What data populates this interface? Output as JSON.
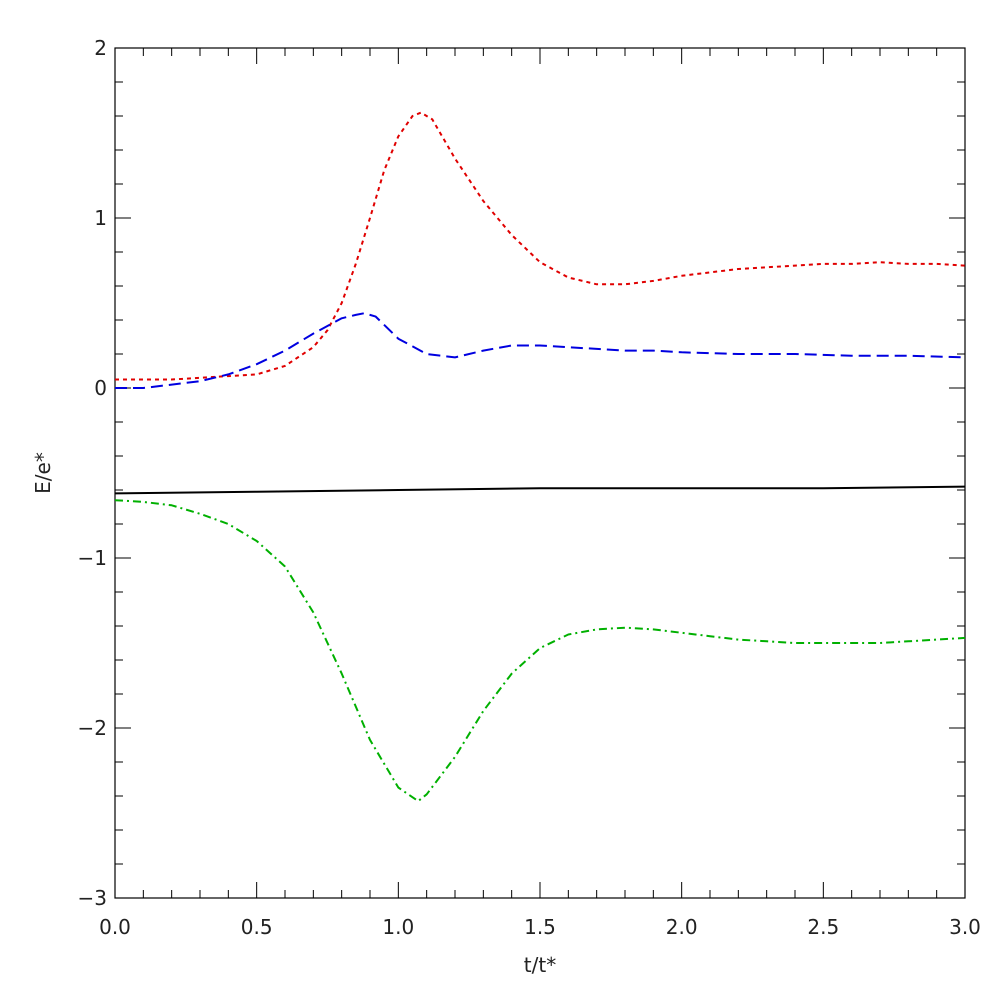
{
  "chart_data": {
    "type": "line",
    "title": "",
    "xlabel": "t/t*",
    "ylabel": "E/e*",
    "xlim": [
      0.0,
      3.0
    ],
    "ylim": [
      -3,
      2
    ],
    "xticks": [
      0.0,
      0.5,
      1.0,
      1.5,
      2.0,
      2.5,
      3.0
    ],
    "xtick_labels": [
      "0.0",
      "0.5",
      "1.0",
      "1.5",
      "2.0",
      "2.5",
      "3.0"
    ],
    "yticks": [
      -3,
      -2,
      -1,
      0,
      1,
      2
    ],
    "ytick_labels": [
      "−3",
      "−2",
      "−1",
      "0",
      "1",
      "2"
    ],
    "grid": false,
    "legend": "none",
    "series": [
      {
        "color": "#e00000",
        "line_style": "dotted",
        "x": [
          0.0,
          0.1,
          0.2,
          0.3,
          0.4,
          0.5,
          0.6,
          0.7,
          0.75,
          0.8,
          0.85,
          0.9,
          0.95,
          1.0,
          1.05,
          1.08,
          1.12,
          1.2,
          1.3,
          1.4,
          1.5,
          1.6,
          1.7,
          1.8,
          1.9,
          2.0,
          2.1,
          2.2,
          2.3,
          2.4,
          2.5,
          2.6,
          2.7,
          2.8,
          2.9,
          3.0
        ],
        "y": [
          0.05,
          0.05,
          0.05,
          0.06,
          0.07,
          0.08,
          0.13,
          0.24,
          0.34,
          0.5,
          0.73,
          1.0,
          1.28,
          1.48,
          1.6,
          1.62,
          1.58,
          1.35,
          1.1,
          0.9,
          0.74,
          0.65,
          0.61,
          0.61,
          0.63,
          0.66,
          0.68,
          0.7,
          0.71,
          0.72,
          0.73,
          0.73,
          0.74,
          0.73,
          0.73,
          0.72
        ]
      },
      {
        "color": "#0000e0",
        "line_style": "dashed",
        "x": [
          0.0,
          0.1,
          0.2,
          0.3,
          0.4,
          0.5,
          0.6,
          0.7,
          0.8,
          0.85,
          0.88,
          0.92,
          1.0,
          1.1,
          1.2,
          1.3,
          1.4,
          1.5,
          1.6,
          1.7,
          1.8,
          1.9,
          2.0,
          2.2,
          2.4,
          2.6,
          2.8,
          3.0
        ],
        "y": [
          0.0,
          0.0,
          0.02,
          0.04,
          0.08,
          0.14,
          0.22,
          0.32,
          0.41,
          0.43,
          0.44,
          0.42,
          0.29,
          0.2,
          0.18,
          0.22,
          0.25,
          0.25,
          0.24,
          0.23,
          0.22,
          0.22,
          0.21,
          0.2,
          0.2,
          0.19,
          0.19,
          0.18
        ]
      },
      {
        "color": "#000000",
        "line_style": "solid",
        "x": [
          0.0,
          0.5,
          1.0,
          1.5,
          2.0,
          2.5,
          3.0
        ],
        "y": [
          -0.62,
          -0.61,
          -0.6,
          -0.59,
          -0.59,
          -0.59,
          -0.58
        ]
      },
      {
        "color": "#00b000",
        "line_style": "dash-dot",
        "x": [
          0.0,
          0.1,
          0.2,
          0.3,
          0.4,
          0.5,
          0.6,
          0.7,
          0.8,
          0.9,
          1.0,
          1.07,
          1.1,
          1.2,
          1.3,
          1.4,
          1.5,
          1.6,
          1.7,
          1.8,
          1.9,
          2.0,
          2.1,
          2.2,
          2.3,
          2.4,
          2.5,
          2.6,
          2.7,
          2.8,
          2.9,
          3.0
        ],
        "y": [
          -0.66,
          -0.67,
          -0.69,
          -0.74,
          -0.8,
          -0.9,
          -1.05,
          -1.32,
          -1.68,
          -2.07,
          -2.35,
          -2.43,
          -2.39,
          -2.17,
          -1.9,
          -1.68,
          -1.53,
          -1.45,
          -1.42,
          -1.41,
          -1.42,
          -1.44,
          -1.46,
          -1.48,
          -1.49,
          -1.5,
          -1.5,
          -1.5,
          -1.5,
          -1.49,
          -1.48,
          -1.47
        ]
      }
    ]
  }
}
